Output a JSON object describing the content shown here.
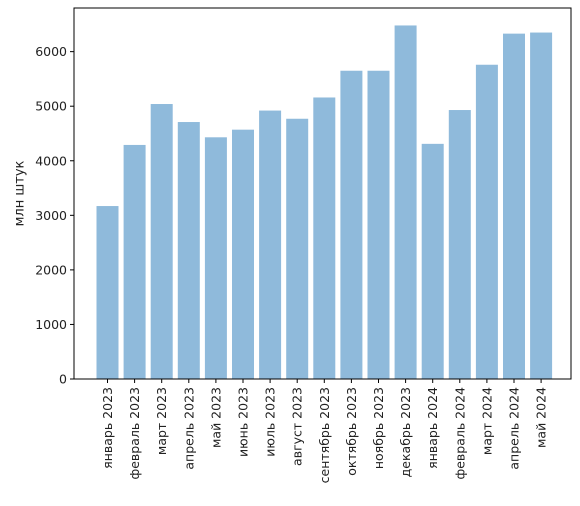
{
  "chart_data": {
    "type": "bar",
    "title": "",
    "xlabel": "",
    "ylabel": "млн штук",
    "ylim": [
      0,
      6800
    ],
    "yticks": [
      0,
      1000,
      2000,
      3000,
      4000,
      5000,
      6000
    ],
    "grid": false,
    "bar_color": "#8fbadb",
    "categories": [
      "январь 2023",
      "февраль 2023",
      "март 2023",
      "апрель 2023",
      "май 2023",
      "июнь 2023",
      "июль 2023",
      "август 2023",
      "сентябрь 2023",
      "октябрь 2023",
      "ноябрь 2023",
      "декабрь 2023",
      "январь 2024",
      "февраль 2024",
      "март 2024",
      "апрель 2024",
      "май 2024"
    ],
    "values": [
      3170,
      4290,
      5040,
      4710,
      4430,
      4570,
      4920,
      4770,
      5160,
      5650,
      5650,
      6480,
      4310,
      4930,
      5760,
      6330,
      6350
    ]
  }
}
